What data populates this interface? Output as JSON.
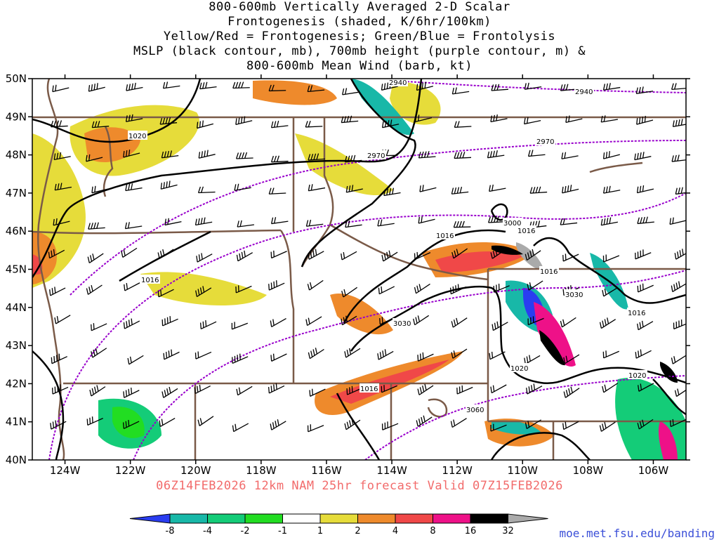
{
  "title_lines": [
    "800-600mb Vertically Averaged 2-D Scalar",
    "Frontogenesis (shaded, K/6hr/100km)",
    "Yellow/Red = Frontogenesis;  Green/Blue = Frontolysis",
    "MSLP (black contour, mb), 700mb height (purple contour, m) &",
    "800-600mb Mean Wind (barb, kt)"
  ],
  "valid_line": "06Z14FEB2026 12km NAM 25hr forecast Valid 07Z15FEB2026",
  "credit": "moe.met.fsu.edu/banding",
  "map": {
    "lon_range": [
      -125,
      -105
    ],
    "lat_range": [
      40,
      50
    ],
    "lat_ticks": [
      "40N",
      "41N",
      "42N",
      "43N",
      "44N",
      "45N",
      "46N",
      "47N",
      "48N",
      "49N",
      "50N"
    ],
    "lon_ticks": [
      "124W",
      "122W",
      "120W",
      "118W",
      "116W",
      "114W",
      "112W",
      "110W",
      "108W",
      "106W"
    ],
    "mslp_labels": [
      "1020",
      "1016",
      "1016",
      "1016",
      "1016",
      "1016",
      "1020",
      "1020",
      "1016"
    ],
    "height_labels": [
      "2940",
      "2940",
      "2970",
      "2970",
      "3000",
      "3030",
      "3030",
      "3060"
    ],
    "colors": {
      "mslp": "#000000",
      "height": "#9900cc",
      "borders": "#7a5a48",
      "barbs": "#000000"
    }
  },
  "colorbar": {
    "ticks": [
      "-8",
      "-4",
      "-2",
      "-1",
      "1",
      "2",
      "4",
      "8",
      "16",
      "32"
    ],
    "colors": [
      "#2a3df0",
      "#18b8a8",
      "#14cc78",
      "#22dd22",
      "#ffffff",
      "#e6dc3a",
      "#ee8a2c",
      "#f04848",
      "#ee1188",
      "#000000",
      "#aaaaaa"
    ]
  }
}
